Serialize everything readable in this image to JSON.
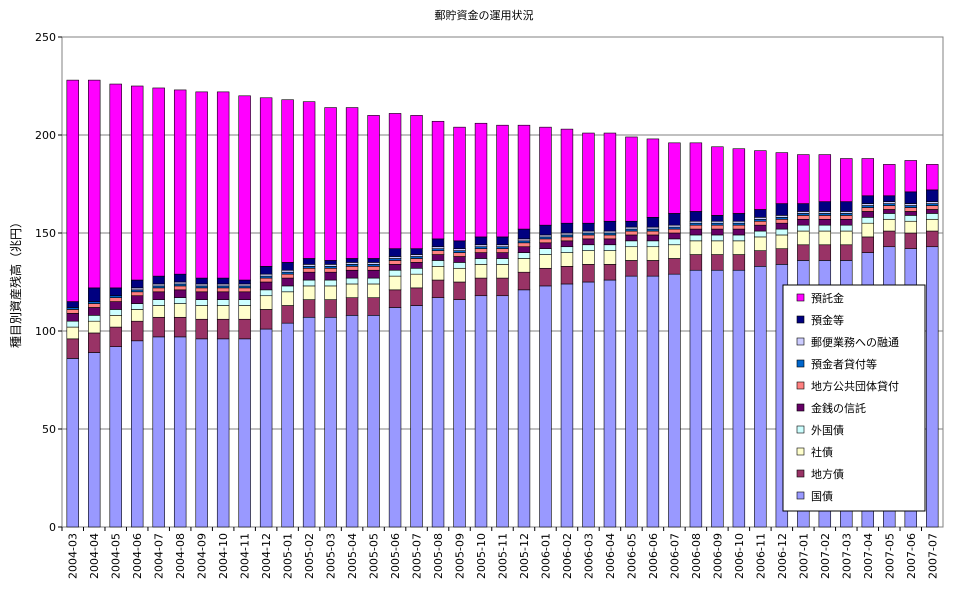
{
  "chart_data": {
    "type": "stacked-bar",
    "title": "郵貯資金の運用状況",
    "ylabel": "種目別資産残高（兆円）",
    "xlabel": "",
    "ylim": [
      0,
      250
    ],
    "yticks": [
      0,
      50,
      100,
      150,
      200,
      250
    ],
    "grid": true,
    "legend": "right",
    "categories": [
      "2004-03",
      "2004-04",
      "2004-05",
      "2004-06",
      "2004-07",
      "2004-08",
      "2004-09",
      "2004-10",
      "2004-11",
      "2004-12",
      "2005-01",
      "2005-02",
      "2005-03",
      "2005-04",
      "2005-05",
      "2005-06",
      "2005-07",
      "2005-08",
      "2005-09",
      "2005-10",
      "2005-11",
      "2005-12",
      "2006-01",
      "2006-02",
      "2006-03",
      "2006-04",
      "2006-05",
      "2006-06",
      "2006-07",
      "2006-08",
      "2006-09",
      "2006-10",
      "2006-11",
      "2006-12",
      "2007-01",
      "2007-02",
      "2007-03",
      "2007-04",
      "2007-05",
      "2007-06",
      "2007-07"
    ],
    "series": [
      {
        "name": "国債",
        "color": "#9999ff",
        "values": [
          86,
          89,
          92,
          95,
          97,
          97,
          96,
          96,
          96,
          101,
          104,
          107,
          107,
          108,
          108,
          112,
          113,
          117,
          116,
          118,
          118,
          121,
          123,
          124,
          125,
          126,
          128,
          128,
          129,
          131,
          131,
          131,
          133,
          134,
          136,
          136,
          136,
          140,
          143,
          142,
          143
        ]
      },
      {
        "name": "地方債",
        "color": "#993366",
        "values": [
          10,
          10,
          10,
          10,
          10,
          10,
          10,
          10,
          10,
          10,
          9,
          9,
          9,
          9,
          9,
          9,
          9,
          9,
          9,
          9,
          9,
          9,
          9,
          9,
          9,
          8,
          8,
          8,
          8,
          8,
          8,
          8,
          8,
          8,
          8,
          8,
          8,
          8,
          8,
          8,
          8
        ]
      },
      {
        "name": "社債",
        "color": "#ffffcc",
        "values": [
          6,
          6,
          6,
          6,
          6,
          7,
          7,
          7,
          7,
          7,
          7,
          7,
          7,
          7,
          7,
          7,
          7,
          7,
          7,
          7,
          7,
          7,
          7,
          7,
          7,
          7,
          7,
          7,
          7,
          7,
          7,
          7,
          7,
          7,
          7,
          7,
          7,
          7,
          6,
          6,
          6
        ]
      },
      {
        "name": "外国債",
        "color": "#ccffff",
        "values": [
          3,
          3,
          3,
          3,
          3,
          3,
          3,
          3,
          3,
          3,
          3,
          3,
          3,
          3,
          3,
          3,
          3,
          3,
          3,
          3,
          3,
          3,
          3,
          3,
          3,
          3,
          3,
          3,
          3,
          3,
          3,
          3,
          3,
          3,
          3,
          3,
          3,
          3,
          3,
          3,
          3
        ]
      },
      {
        "name": "金銭の信託",
        "color": "#660066",
        "values": [
          4,
          4,
          4,
          4,
          4,
          4,
          4,
          4,
          4,
          4,
          4,
          4,
          4,
          4,
          4,
          3,
          3,
          3,
          3,
          3,
          3,
          3,
          3,
          3,
          3,
          3,
          3,
          3,
          3,
          3,
          3,
          3,
          3,
          3,
          3,
          3,
          3,
          3,
          2,
          2,
          2
        ]
      },
      {
        "name": "地方公共団体貸付",
        "color": "#ff8080",
        "values": [
          2,
          2,
          2,
          2,
          2,
          2,
          2,
          2,
          2,
          2,
          2,
          2,
          2,
          2,
          2,
          2,
          2,
          2,
          2,
          2,
          2,
          2,
          2,
          2,
          2,
          2,
          2,
          2,
          2,
          2,
          2,
          2,
          2,
          2,
          2,
          2,
          2,
          2,
          2,
          2,
          2
        ]
      },
      {
        "name": "預金者貸付等",
        "color": "#0066cc",
        "values": [
          1,
          1,
          1,
          1,
          1,
          1,
          1,
          1,
          1,
          1,
          1,
          1,
          1,
          1,
          1,
          1,
          1,
          1,
          1,
          1,
          1,
          1,
          1,
          1,
          1,
          1,
          1,
          1,
          1,
          1,
          1,
          1,
          1,
          1,
          1,
          1,
          1,
          1,
          1,
          1,
          1
        ]
      },
      {
        "name": "郵便業務への融通",
        "color": "#ccccff",
        "values": [
          0,
          0,
          0,
          1,
          1,
          1,
          1,
          1,
          1,
          1,
          1,
          1,
          1,
          1,
          1,
          1,
          1,
          1,
          1,
          1,
          1,
          1,
          1,
          1,
          1,
          1,
          1,
          1,
          1,
          1,
          1,
          1,
          1,
          1,
          1,
          1,
          1,
          1,
          1,
          1,
          1
        ]
      },
      {
        "name": "預金等",
        "color": "#000080",
        "values": [
          3,
          7,
          4,
          4,
          4,
          4,
          3,
          3,
          2,
          4,
          4,
          3,
          2,
          2,
          2,
          4,
          3,
          4,
          4,
          4,
          4,
          5,
          5,
          5,
          4,
          5,
          3,
          5,
          6,
          5,
          3,
          4,
          4,
          6,
          4,
          5,
          5,
          4,
          3,
          6,
          6
        ]
      },
      {
        "name": "預託金",
        "color": "#ff00ff",
        "values": [
          113,
          106,
          104,
          99,
          96,
          94,
          95,
          95,
          94,
          86,
          83,
          80,
          78,
          77,
          73,
          69,
          68,
          60,
          58,
          58,
          57,
          53,
          50,
          48,
          46,
          45,
          43,
          40,
          36,
          35,
          35,
          33,
          30,
          26,
          25,
          24,
          22,
          19,
          16,
          16,
          13
        ]
      }
    ]
  }
}
